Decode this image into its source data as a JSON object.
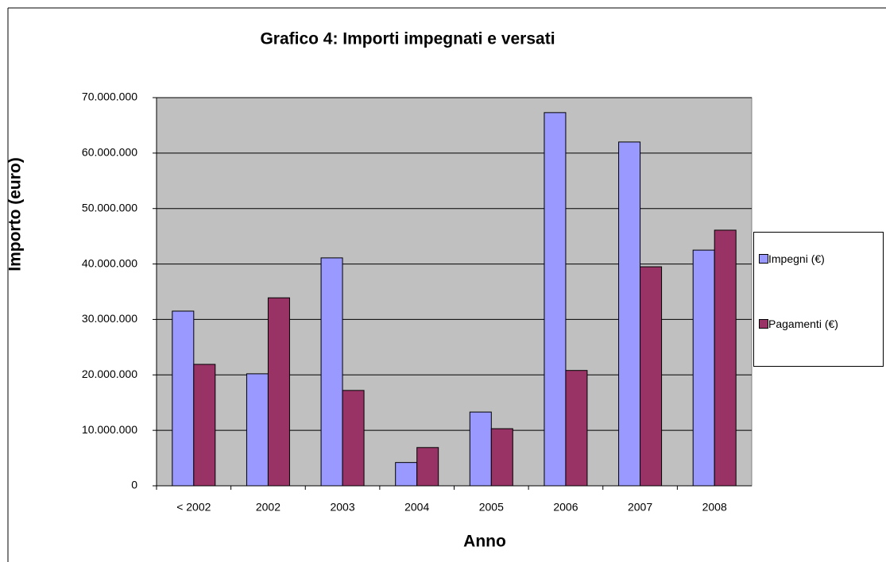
{
  "chart_data": {
    "type": "bar",
    "title": "Grafico 4: Importi impegnati e versati",
    "x_label": "Anno",
    "y_label": "Importo (euro)",
    "categories": [
      "< 2002",
      "2002",
      "2003",
      "2004",
      "2005",
      "2006",
      "2007",
      "2008"
    ],
    "series": [
      {
        "name": "Impegni (€)",
        "color": "#9999ff",
        "values": [
          31500000,
          20200000,
          41100000,
          4200000,
          13300000,
          67300000,
          62000000,
          42500000
        ]
      },
      {
        "name": "Pagamenti (€)",
        "color": "#993366",
        "values": [
          21900000,
          33900000,
          17200000,
          6900000,
          10300000,
          20800000,
          39500000,
          46100000
        ]
      }
    ],
    "ylim": [
      0,
      70000000
    ],
    "yticks": [
      0,
      {
        "value": 10000000,
        "label": "10.000.000"
      },
      {
        "value": 20000000,
        "label": "20.000.000"
      },
      {
        "value": 30000000,
        "label": "30.000.000"
      },
      {
        "value": 40000000,
        "label": "40.000.000"
      },
      {
        "value": 50000000,
        "label": "50.000.000"
      },
      {
        "value": 60000000,
        "label": "60.000.000"
      },
      {
        "value": 70000000,
        "label": "70.000.000"
      }
    ],
    "grid": true,
    "legend": "right"
  }
}
